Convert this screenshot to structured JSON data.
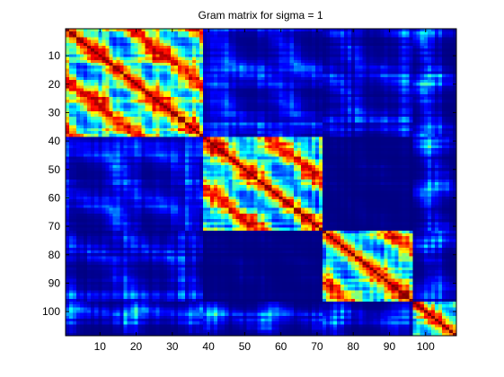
{
  "chart_data": {
    "type": "heatmap",
    "title": "Gram matrix for sigma = 1",
    "matrix_size": 108,
    "xlim": [
      0.5,
      108.5
    ],
    "ylim": [
      0.5,
      108.5
    ],
    "y_reversed": true,
    "colormap": "jet",
    "grid": false,
    "legend": "none",
    "x_ticks": [
      10,
      20,
      30,
      40,
      50,
      60,
      70,
      80,
      90,
      100
    ],
    "y_ticks": [
      10,
      20,
      30,
      40,
      50,
      60,
      70,
      80,
      90,
      100
    ],
    "cluster_boundaries": [
      1,
      38,
      71,
      96,
      108
    ],
    "diagonal_value": 1.0,
    "value_range": [
      0.0,
      1.0
    ]
  }
}
